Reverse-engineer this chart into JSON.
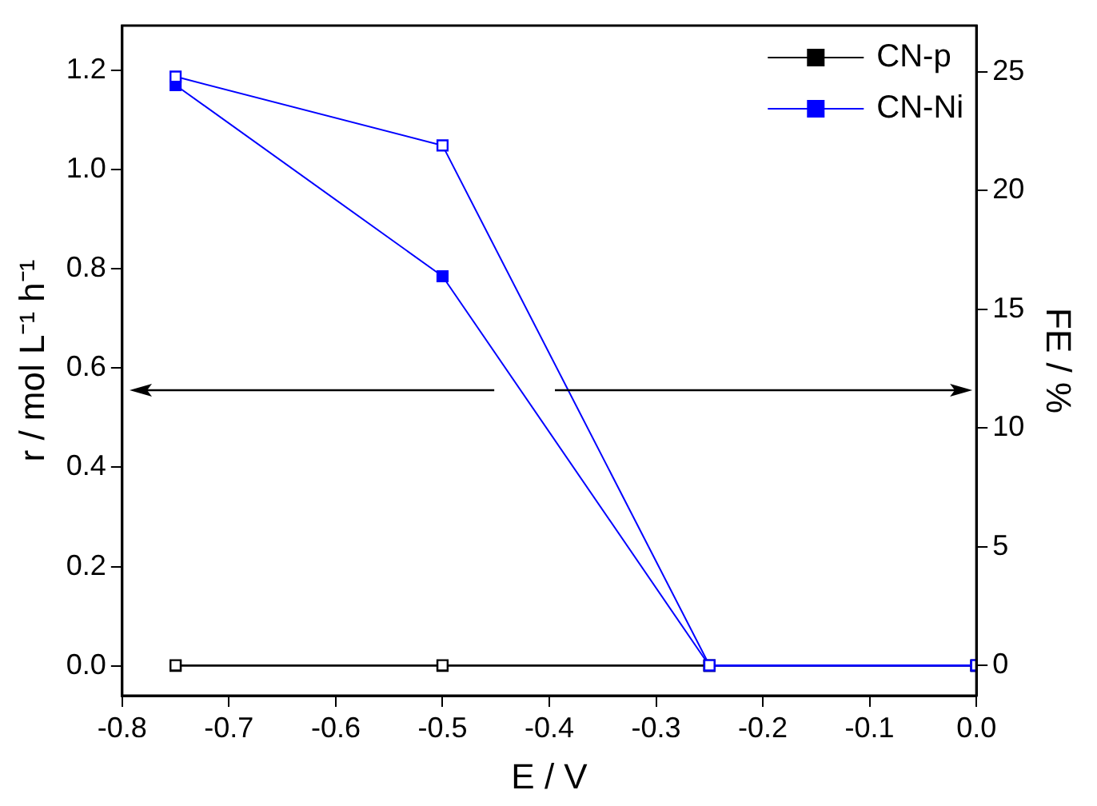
{
  "chart_data": {
    "type": "line",
    "xlabel": "E / V",
    "ylabel": "r / mol L⁻¹ h⁻¹",
    "y2label": "FE / %",
    "x": [
      -0.75,
      -0.5,
      -0.25,
      0
    ],
    "series": [
      {
        "name": "CN-p",
        "color": "#000000",
        "values": [
          0,
          0,
          0,
          0
        ]
      },
      {
        "name": "CN-Ni",
        "color": "#0000ff",
        "values": [
          1.17,
          0.785,
          0,
          0
        ]
      },
      {
        "color": "#000000",
        "axis": "y2",
        "values": [
          0,
          0,
          0,
          0
        ]
      },
      {
        "color": "#0000ff",
        "axis": "y2",
        "values": [
          24.8,
          21.9,
          0,
          0
        ]
      }
    ],
    "xlim": [
      -0.8,
      0
    ],
    "xticks": [
      -0.8,
      -0.7,
      -0.6,
      -0.5,
      -0.4,
      -0.3,
      -0.2,
      -0.1,
      {
        "value": 0,
        "label": "0.0"
      }
    ],
    "ylim": [
      -0.06,
      1.29
    ],
    "yticks": [
      {
        "value": 0,
        "label": "0.0"
      },
      0.2,
      0.4,
      0.6,
      0.8,
      {
        "value": 1,
        "label": "1.0"
      },
      1.2
    ],
    "y2lim": [
      -1.28,
      26.95
    ],
    "y2ticks": [
      0,
      5,
      10,
      15,
      20,
      25
    ],
    "grid": false,
    "legend": "top right",
    "marker": "square",
    "line_style": "solid"
  }
}
